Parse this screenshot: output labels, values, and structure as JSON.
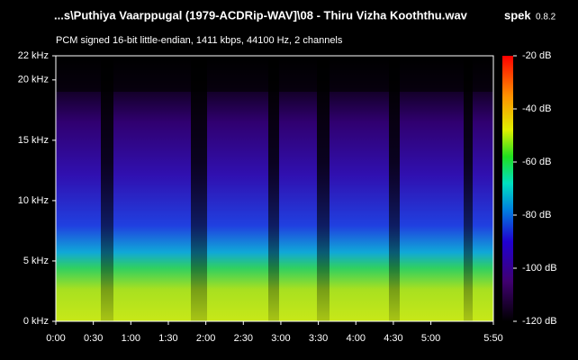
{
  "chart_data": {
    "type": "spectrogram",
    "title": "...s\\Puthiya Vaarppugal (1979-ACDRip-WAV]\\08 - Thiru Vizha Kooththu.wav",
    "app_name": "spek",
    "app_version": "0.8.2",
    "subtitle": "PCM signed 16-bit little-endian, 1411 kbps, 44100 Hz, 2 channels",
    "xlim": [
      0,
      350
    ],
    "xticks": [
      {
        "value": 0,
        "label": "0:00"
      },
      {
        "value": 30,
        "label": "0:30"
      },
      {
        "value": 60,
        "label": "1:00"
      },
      {
        "value": 90,
        "label": "1:30"
      },
      {
        "value": 120,
        "label": "2:00"
      },
      {
        "value": 150,
        "label": "2:30"
      },
      {
        "value": 180,
        "label": "3:00"
      },
      {
        "value": 210,
        "label": "3:30"
      },
      {
        "value": 240,
        "label": "4:00"
      },
      {
        "value": 270,
        "label": "4:30"
      },
      {
        "value": 300,
        "label": "5:00"
      },
      {
        "value": 350,
        "label": "5:50"
      }
    ],
    "ylim": [
      0,
      22
    ],
    "yticks": [
      {
        "value": 0,
        "label": "0 kHz"
      },
      {
        "value": 5,
        "label": "5 kHz"
      },
      {
        "value": 10,
        "label": "10 kHz"
      },
      {
        "value": 15,
        "label": "15 kHz"
      },
      {
        "value": 20,
        "label": "20 kHz"
      },
      {
        "value": 22,
        "label": "22 kHz"
      }
    ],
    "zlim": [
      -120,
      -20
    ],
    "zticks": [
      {
        "value": -20,
        "label": "-20 dB"
      },
      {
        "value": -40,
        "label": "-40 dB"
      },
      {
        "value": -60,
        "label": "-60 dB"
      },
      {
        "value": -80,
        "label": "-80 dB"
      },
      {
        "value": -100,
        "label": "-100 dB"
      },
      {
        "value": -120,
        "label": "-120 dB"
      }
    ]
  }
}
